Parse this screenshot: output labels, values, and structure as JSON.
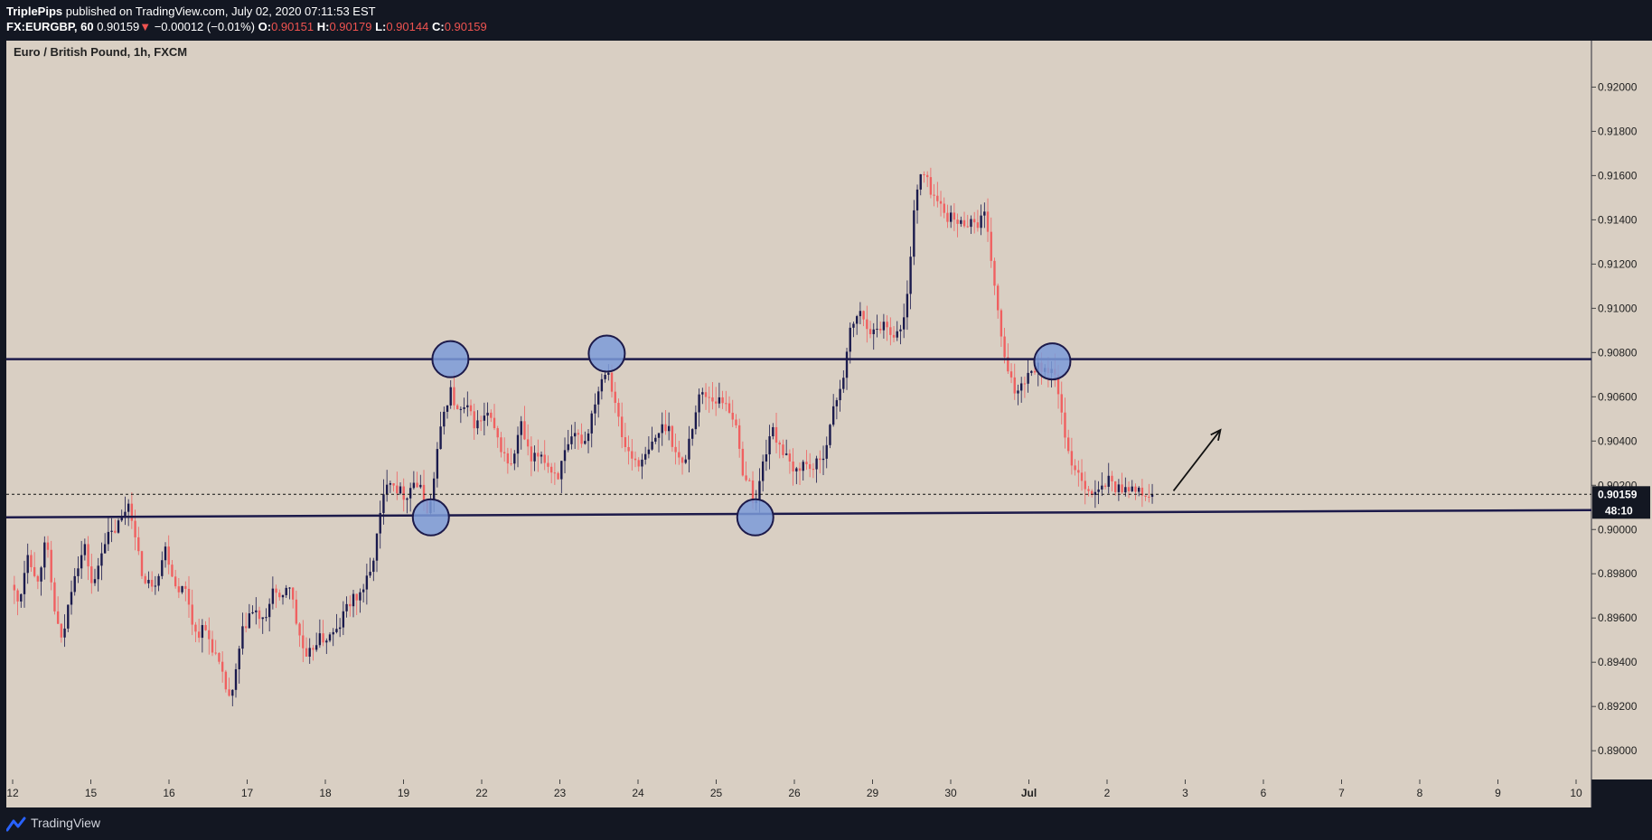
{
  "header": {
    "author": "TriplePips",
    "published": "published on TradingView.com, July 02, 2020 07:11:53 EST",
    "symbol": "FX:EURGBP, 60",
    "last": "0.90159",
    "change_arrow": "▼",
    "change": "−0.00012 (−0.01%)",
    "o_label": "O:",
    "o_value": "0.90151",
    "h_label": "H:",
    "h_value": "0.90179",
    "l_label": "L:",
    "l_value": "0.90144",
    "c_label": "C:",
    "c_value": "0.90159"
  },
  "footer": {
    "brand": "TradingView",
    "logo_icon": "tradingview-logo-icon"
  },
  "colors": {
    "background": "#131722",
    "pane": "#d9cfc3",
    "up_candle": "#1a1a4d",
    "down_candle": "#f06060",
    "level_line": "#1c1a4a",
    "marker_fill": "#7b9bd9",
    "price_tag": "#131722"
  },
  "chart_data": {
    "type": "candlestick",
    "title": "Euro / British Pound, 1h, FXCM",
    "y_axis": {
      "ticks": [
        "0.92000",
        "0.91800",
        "0.91600",
        "0.91400",
        "0.91200",
        "0.91000",
        "0.90800",
        "0.90600",
        "0.90400",
        "0.90200",
        "0.90000",
        "0.89800",
        "0.89600",
        "0.89400",
        "0.89200",
        "0.89000"
      ],
      "tick_values": [
        0.92,
        0.918,
        0.916,
        0.914,
        0.912,
        0.91,
        0.908,
        0.906,
        0.904,
        0.902,
        0.9,
        0.898,
        0.896,
        0.894,
        0.892,
        0.89
      ],
      "range": [
        0.8887,
        0.9221
      ]
    },
    "x_axis": {
      "labels": [
        "12",
        "15",
        "16",
        "17",
        "18",
        "19",
        "22",
        "23",
        "24",
        "25",
        "26",
        "29",
        "30",
        "Jul",
        "2",
        "3",
        "6",
        "7",
        "8",
        "9",
        "10"
      ],
      "slots": [
        0,
        1,
        2,
        3,
        4,
        5,
        6,
        7,
        8,
        9,
        10,
        11,
        12,
        13,
        14,
        15,
        16,
        17,
        18,
        19,
        20
      ]
    },
    "current_price": {
      "label": "0.90159",
      "value": 0.90159,
      "countdown": "48:10"
    },
    "levels": [
      {
        "name": "resistance",
        "start": 0.9077,
        "end": 0.9077
      },
      {
        "name": "support",
        "start": 0.90055,
        "end": 0.90088
      }
    ],
    "touch_markers": [
      {
        "slot": 5.35,
        "price": 0.90055
      },
      {
        "slot": 5.6,
        "price": 0.9077
      },
      {
        "slot": 7.6,
        "price": 0.90795
      },
      {
        "slot": 9.5,
        "price": 0.90055
      },
      {
        "slot": 13.3,
        "price": 0.9076
      }
    ],
    "arrow": {
      "from": [
        14.85,
        0.90175
      ],
      "to": [
        15.45,
        0.9045
      ]
    },
    "path": [
      [
        0.0,
        0.8975
      ],
      [
        0.1,
        0.8966
      ],
      [
        0.22,
        0.8992
      ],
      [
        0.32,
        0.8975
      ],
      [
        0.45,
        0.8995
      ],
      [
        0.55,
        0.8965
      ],
      [
        0.65,
        0.8948
      ],
      [
        0.8,
        0.898
      ],
      [
        0.95,
        0.8992
      ],
      [
        1.05,
        0.8972
      ],
      [
        1.18,
        0.8995
      ],
      [
        1.3,
        0.8998
      ],
      [
        1.43,
        0.9006
      ],
      [
        1.52,
        0.9014
      ],
      [
        1.6,
        0.8992
      ],
      [
        1.72,
        0.8975
      ],
      [
        1.85,
        0.8977
      ],
      [
        1.98,
        0.8992
      ],
      [
        2.1,
        0.8975
      ],
      [
        2.25,
        0.8972
      ],
      [
        2.35,
        0.8953
      ],
      [
        2.48,
        0.8955
      ],
      [
        2.6,
        0.8945
      ],
      [
        2.73,
        0.893
      ],
      [
        2.82,
        0.8922
      ],
      [
        2.95,
        0.8952
      ],
      [
        3.05,
        0.8962
      ],
      [
        3.15,
        0.8962
      ],
      [
        3.25,
        0.8956
      ],
      [
        3.35,
        0.8975
      ],
      [
        3.45,
        0.8965
      ],
      [
        3.55,
        0.8978
      ],
      [
        3.65,
        0.8958
      ],
      [
        3.78,
        0.894
      ],
      [
        3.9,
        0.895
      ],
      [
        4.05,
        0.8951
      ],
      [
        4.18,
        0.8954
      ],
      [
        4.3,
        0.8966
      ],
      [
        4.45,
        0.897
      ],
      [
        4.6,
        0.898
      ],
      [
        4.72,
        0.9005
      ],
      [
        4.82,
        0.9025
      ],
      [
        4.95,
        0.9018
      ],
      [
        5.05,
        0.9015
      ],
      [
        5.15,
        0.9022
      ],
      [
        5.25,
        0.9017
      ],
      [
        5.35,
        0.9007
      ],
      [
        5.45,
        0.9035
      ],
      [
        5.55,
        0.9055
      ],
      [
        5.62,
        0.9063
      ],
      [
        5.72,
        0.9052
      ],
      [
        5.82,
        0.9055
      ],
      [
        5.95,
        0.9047
      ],
      [
        6.1,
        0.9052
      ],
      [
        6.25,
        0.9038
      ],
      [
        6.4,
        0.9028
      ],
      [
        6.52,
        0.9048
      ],
      [
        6.65,
        0.903
      ],
      [
        6.78,
        0.9035
      ],
      [
        6.9,
        0.9027
      ],
      [
        7.0,
        0.9025
      ],
      [
        7.1,
        0.9035
      ],
      [
        7.22,
        0.9042
      ],
      [
        7.35,
        0.904
      ],
      [
        7.48,
        0.906
      ],
      [
        7.62,
        0.9075
      ],
      [
        7.72,
        0.906
      ],
      [
        7.82,
        0.904
      ],
      [
        7.95,
        0.9032
      ],
      [
        8.08,
        0.903
      ],
      [
        8.2,
        0.9038
      ],
      [
        8.3,
        0.9045
      ],
      [
        8.4,
        0.9048
      ],
      [
        8.5,
        0.9035
      ],
      [
        8.6,
        0.9028
      ],
      [
        8.7,
        0.9045
      ],
      [
        8.82,
        0.9062
      ],
      [
        8.95,
        0.906
      ],
      [
        9.05,
        0.9058
      ],
      [
        9.15,
        0.9058
      ],
      [
        9.25,
        0.905
      ],
      [
        9.35,
        0.9028
      ],
      [
        9.45,
        0.902
      ],
      [
        9.52,
        0.901
      ],
      [
        9.62,
        0.903
      ],
      [
        9.72,
        0.9045
      ],
      [
        9.82,
        0.904
      ],
      [
        9.92,
        0.9032
      ],
      [
        10.0,
        0.9025
      ],
      [
        10.12,
        0.903
      ],
      [
        10.25,
        0.9028
      ],
      [
        10.35,
        0.903
      ],
      [
        10.45,
        0.9042
      ],
      [
        10.55,
        0.9058
      ],
      [
        10.65,
        0.907
      ],
      [
        10.75,
        0.9092
      ],
      [
        10.85,
        0.9098
      ],
      [
        10.95,
        0.9093
      ],
      [
        11.05,
        0.9088
      ],
      [
        11.15,
        0.9094
      ],
      [
        11.25,
        0.909
      ],
      [
        11.35,
        0.9088
      ],
      [
        11.45,
        0.9098
      ],
      [
        11.55,
        0.9145
      ],
      [
        11.65,
        0.9162
      ],
      [
        11.75,
        0.9155
      ],
      [
        11.85,
        0.9148
      ],
      [
        11.95,
        0.9143
      ],
      [
        12.05,
        0.914
      ],
      [
        12.15,
        0.9138
      ],
      [
        12.25,
        0.914
      ],
      [
        12.35,
        0.9138
      ],
      [
        12.45,
        0.9142
      ],
      [
        12.55,
        0.912
      ],
      [
        12.65,
        0.909
      ],
      [
        12.75,
        0.907
      ],
      [
        12.85,
        0.9062
      ],
      [
        12.95,
        0.9068
      ],
      [
        13.1,
        0.9074
      ],
      [
        13.25,
        0.9073
      ],
      [
        13.38,
        0.9068
      ],
      [
        13.5,
        0.9035
      ],
      [
        13.62,
        0.9028
      ],
      [
        13.75,
        0.902
      ],
      [
        13.85,
        0.9015
      ],
      [
        13.95,
        0.9018
      ],
      [
        14.05,
        0.9023
      ],
      [
        14.15,
        0.9018
      ],
      [
        14.28,
        0.902
      ],
      [
        14.4,
        0.9017
      ],
      [
        14.52,
        0.9015
      ],
      [
        14.6,
        0.90159
      ]
    ]
  }
}
